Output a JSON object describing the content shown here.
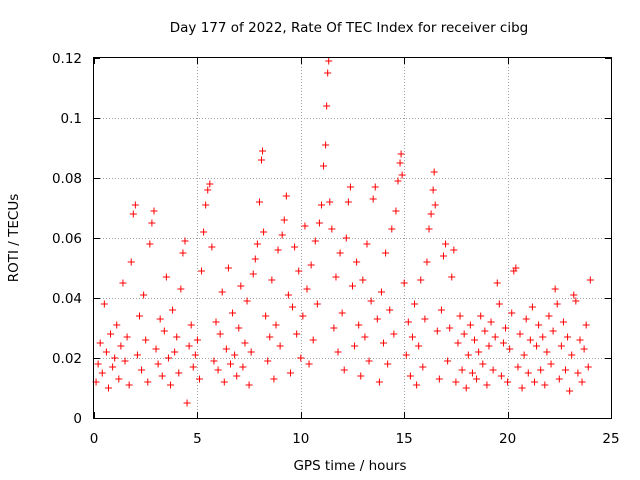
{
  "chart_data": {
    "type": "scatter",
    "title": "Day 177 of 2022, Rate Of TEC Index for receiver cibg",
    "xlabel": "GPS time / hours",
    "ylabel": "ROTI / TECUs",
    "xlim": [
      0,
      25
    ],
    "ylim": [
      0,
      0.12
    ],
    "x_ticks": [
      "0",
      "5",
      "10",
      "15",
      "20",
      "25"
    ],
    "y_ticks": [
      "0",
      "0.02",
      "0.04",
      "0.06",
      "0.08",
      "0.1",
      "0.12"
    ],
    "x_tick_values": [
      0,
      5,
      10,
      15,
      20,
      25
    ],
    "y_tick_values": [
      0,
      0.02,
      0.04,
      0.06,
      0.08,
      0.1,
      0.12
    ],
    "grid": true,
    "marker": "plus",
    "color": "#ff0000",
    "series": [
      {
        "points": [
          [
            0.1,
            0.012
          ],
          [
            0.2,
            0.018
          ],
          [
            0.3,
            0.025
          ],
          [
            0.4,
            0.015
          ],
          [
            0.5,
            0.038
          ],
          [
            0.6,
            0.022
          ],
          [
            0.7,
            0.01
          ],
          [
            0.8,
            0.028
          ],
          [
            0.9,
            0.017
          ],
          [
            1.0,
            0.02
          ],
          [
            1.1,
            0.031
          ],
          [
            1.2,
            0.013
          ],
          [
            1.3,
            0.024
          ],
          [
            1.4,
            0.045
          ],
          [
            1.5,
            0.019
          ],
          [
            1.6,
            0.027
          ],
          [
            1.7,
            0.011
          ],
          [
            1.8,
            0.052
          ],
          [
            1.9,
            0.068
          ],
          [
            2.0,
            0.071
          ],
          [
            2.1,
            0.021
          ],
          [
            2.2,
            0.034
          ],
          [
            2.3,
            0.016
          ],
          [
            2.4,
            0.041
          ],
          [
            2.5,
            0.026
          ],
          [
            2.6,
            0.012
          ],
          [
            2.7,
            0.058
          ],
          [
            2.8,
            0.065
          ],
          [
            2.9,
            0.069
          ],
          [
            3.0,
            0.023
          ],
          [
            3.1,
            0.018
          ],
          [
            3.2,
            0.033
          ],
          [
            3.3,
            0.014
          ],
          [
            3.4,
            0.029
          ],
          [
            3.5,
            0.047
          ],
          [
            3.6,
            0.02
          ],
          [
            3.7,
            0.011
          ],
          [
            3.8,
            0.036
          ],
          [
            3.9,
            0.022
          ],
          [
            4.0,
            0.027
          ],
          [
            4.1,
            0.015
          ],
          [
            4.2,
            0.043
          ],
          [
            4.3,
            0.055
          ],
          [
            4.4,
            0.059
          ],
          [
            4.5,
            0.005
          ],
          [
            4.6,
            0.024
          ],
          [
            4.7,
            0.031
          ],
          [
            4.8,
            0.017
          ],
          [
            4.9,
            0.021
          ],
          [
            5.0,
            0.026
          ],
          [
            5.1,
            0.013
          ],
          [
            5.2,
            0.049
          ],
          [
            5.3,
            0.062
          ],
          [
            5.4,
            0.071
          ],
          [
            5.5,
            0.076
          ],
          [
            5.6,
            0.078
          ],
          [
            5.7,
            0.057
          ],
          [
            5.8,
            0.019
          ],
          [
            5.9,
            0.032
          ],
          [
            6.0,
            0.016
          ],
          [
            6.1,
            0.028
          ],
          [
            6.2,
            0.042
          ],
          [
            6.3,
            0.012
          ],
          [
            6.4,
            0.023
          ],
          [
            6.5,
            0.05
          ],
          [
            6.6,
            0.018
          ],
          [
            6.7,
            0.035
          ],
          [
            6.8,
            0.021
          ],
          [
            6.9,
            0.014
          ],
          [
            7.0,
            0.03
          ],
          [
            7.1,
            0.044
          ],
          [
            7.2,
            0.017
          ],
          [
            7.3,
            0.025
          ],
          [
            7.4,
            0.039
          ],
          [
            7.5,
            0.011
          ],
          [
            7.6,
            0.022
          ],
          [
            7.7,
            0.048
          ],
          [
            7.8,
            0.053
          ],
          [
            7.9,
            0.058
          ],
          [
            8.0,
            0.072
          ],
          [
            8.1,
            0.086
          ],
          [
            8.15,
            0.089
          ],
          [
            8.2,
            0.062
          ],
          [
            8.3,
            0.034
          ],
          [
            8.4,
            0.019
          ],
          [
            8.5,
            0.027
          ],
          [
            8.6,
            0.046
          ],
          [
            8.7,
            0.013
          ],
          [
            8.8,
            0.031
          ],
          [
            8.9,
            0.056
          ],
          [
            9.0,
            0.024
          ],
          [
            9.1,
            0.061
          ],
          [
            9.2,
            0.066
          ],
          [
            9.3,
            0.074
          ],
          [
            9.4,
            0.041
          ],
          [
            9.5,
            0.015
          ],
          [
            9.6,
            0.037
          ],
          [
            9.7,
            0.057
          ],
          [
            9.8,
            0.028
          ],
          [
            9.9,
            0.049
          ],
          [
            10.0,
            0.02
          ],
          [
            10.1,
            0.034
          ],
          [
            10.2,
            0.064
          ],
          [
            10.3,
            0.043
          ],
          [
            10.4,
            0.018
          ],
          [
            10.5,
            0.051
          ],
          [
            10.6,
            0.026
          ],
          [
            10.7,
            0.059
          ],
          [
            10.8,
            0.038
          ],
          [
            10.9,
            0.065
          ],
          [
            11.0,
            0.071
          ],
          [
            11.1,
            0.084
          ],
          [
            11.2,
            0.091
          ],
          [
            11.25,
            0.104
          ],
          [
            11.3,
            0.115
          ],
          [
            11.35,
            0.119
          ],
          [
            11.4,
            0.072
          ],
          [
            11.5,
            0.063
          ],
          [
            11.6,
            0.03
          ],
          [
            11.7,
            0.047
          ],
          [
            11.8,
            0.022
          ],
          [
            11.9,
            0.055
          ],
          [
            12.0,
            0.035
          ],
          [
            12.1,
            0.016
          ],
          [
            12.2,
            0.06
          ],
          [
            12.3,
            0.072
          ],
          [
            12.4,
            0.077
          ],
          [
            12.5,
            0.044
          ],
          [
            12.6,
            0.024
          ],
          [
            12.7,
            0.052
          ],
          [
            12.8,
            0.031
          ],
          [
            12.9,
            0.014
          ],
          [
            13.0,
            0.046
          ],
          [
            13.1,
            0.027
          ],
          [
            13.2,
            0.058
          ],
          [
            13.3,
            0.019
          ],
          [
            13.4,
            0.039
          ],
          [
            13.5,
            0.073
          ],
          [
            13.6,
            0.077
          ],
          [
            13.7,
            0.033
          ],
          [
            13.8,
            0.012
          ],
          [
            13.9,
            0.042
          ],
          [
            14.0,
            0.025
          ],
          [
            14.1,
            0.055
          ],
          [
            14.2,
            0.018
          ],
          [
            14.3,
            0.036
          ],
          [
            14.4,
            0.063
          ],
          [
            14.5,
            0.028
          ],
          [
            14.6,
            0.069
          ],
          [
            14.7,
            0.079
          ],
          [
            14.8,
            0.085
          ],
          [
            14.85,
            0.088
          ],
          [
            14.9,
            0.081
          ],
          [
            15.0,
            0.045
          ],
          [
            15.1,
            0.021
          ],
          [
            15.2,
            0.032
          ],
          [
            15.3,
            0.014
          ],
          [
            15.4,
            0.027
          ],
          [
            15.5,
            0.038
          ],
          [
            15.6,
            0.011
          ],
          [
            15.7,
            0.024
          ],
          [
            15.8,
            0.046
          ],
          [
            15.9,
            0.017
          ],
          [
            16.0,
            0.033
          ],
          [
            16.1,
            0.052
          ],
          [
            16.2,
            0.063
          ],
          [
            16.3,
            0.068
          ],
          [
            16.4,
            0.076
          ],
          [
            16.45,
            0.082
          ],
          [
            16.5,
            0.071
          ],
          [
            16.6,
            0.029
          ],
          [
            16.7,
            0.013
          ],
          [
            16.8,
            0.036
          ],
          [
            16.9,
            0.054
          ],
          [
            17.0,
            0.058
          ],
          [
            17.1,
            0.019
          ],
          [
            17.2,
            0.03
          ],
          [
            17.3,
            0.047
          ],
          [
            17.4,
            0.056
          ],
          [
            17.5,
            0.012
          ],
          [
            17.6,
            0.025
          ],
          [
            17.7,
            0.034
          ],
          [
            17.8,
            0.016
          ],
          [
            17.9,
            0.028
          ],
          [
            18.0,
            0.01
          ],
          [
            18.1,
            0.021
          ],
          [
            18.2,
            0.031
          ],
          [
            18.3,
            0.015
          ],
          [
            18.4,
            0.026
          ],
          [
            18.5,
            0.013
          ],
          [
            18.6,
            0.022
          ],
          [
            18.7,
            0.034
          ],
          [
            18.8,
            0.018
          ],
          [
            18.9,
            0.029
          ],
          [
            19.0,
            0.011
          ],
          [
            19.1,
            0.024
          ],
          [
            19.2,
            0.032
          ],
          [
            19.3,
            0.016
          ],
          [
            19.4,
            0.027
          ],
          [
            19.5,
            0.045
          ],
          [
            19.6,
            0.038
          ],
          [
            19.7,
            0.014
          ],
          [
            19.8,
            0.025
          ],
          [
            19.9,
            0.03
          ],
          [
            20.0,
            0.012
          ],
          [
            20.1,
            0.023
          ],
          [
            20.2,
            0.035
          ],
          [
            20.3,
            0.049
          ],
          [
            20.4,
            0.05
          ],
          [
            20.5,
            0.017
          ],
          [
            20.6,
            0.028
          ],
          [
            20.7,
            0.01
          ],
          [
            20.8,
            0.021
          ],
          [
            20.9,
            0.033
          ],
          [
            21.0,
            0.015
          ],
          [
            21.1,
            0.026
          ],
          [
            21.2,
            0.037
          ],
          [
            21.3,
            0.012
          ],
          [
            21.4,
            0.024
          ],
          [
            21.5,
            0.031
          ],
          [
            21.6,
            0.016
          ],
          [
            21.7,
            0.027
          ],
          [
            21.8,
            0.011
          ],
          [
            21.9,
            0.022
          ],
          [
            22.0,
            0.034
          ],
          [
            22.1,
            0.018
          ],
          [
            22.2,
            0.029
          ],
          [
            22.3,
            0.043
          ],
          [
            22.4,
            0.038
          ],
          [
            22.5,
            0.013
          ],
          [
            22.6,
            0.024
          ],
          [
            22.7,
            0.032
          ],
          [
            22.8,
            0.016
          ],
          [
            22.9,
            0.027
          ],
          [
            23.0,
            0.009
          ],
          [
            23.1,
            0.021
          ],
          [
            23.2,
            0.041
          ],
          [
            23.3,
            0.039
          ],
          [
            23.4,
            0.015
          ],
          [
            23.5,
            0.026
          ],
          [
            23.6,
            0.012
          ],
          [
            23.7,
            0.023
          ],
          [
            23.8,
            0.031
          ],
          [
            23.9,
            0.017
          ],
          [
            24.0,
            0.046
          ]
        ]
      }
    ]
  }
}
